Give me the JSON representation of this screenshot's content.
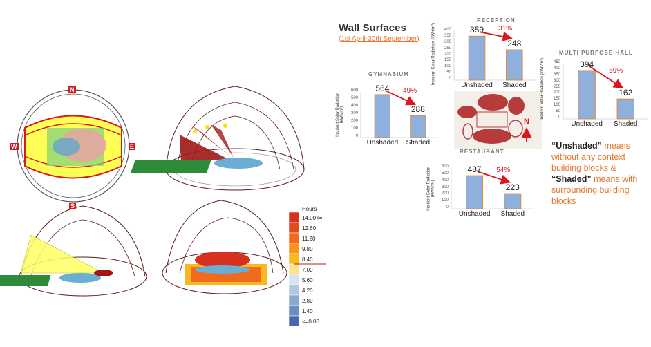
{
  "header": {
    "title": "Wall Surfaces",
    "subtitle": "(1st April-30th September)"
  },
  "compass": {
    "n": "N",
    "s": "S",
    "e": "E",
    "w": "W"
  },
  "north_label": "N",
  "note": {
    "unshaded_term": "“Unshaded”",
    "unshaded_text": " means without any context building blocks & ",
    "shaded_term": "“Shaded”",
    "shaded_text": " means with surrounding building blocks"
  },
  "legend": {
    "title": "Hours",
    "labels": [
      "14.00<=",
      "12.60",
      "11.20",
      "9.80",
      "8.40",
      "7.00",
      "5.60",
      "4.20",
      "2.80",
      "1.40",
      "<=0.00"
    ],
    "colors": [
      "#d7301f",
      "#e34a1e",
      "#ef6b1d",
      "#f7941d",
      "#fbb81d",
      "#fde28a",
      "#d7e3ef",
      "#b0c6e0",
      "#8aa8d2",
      "#6b8cc4",
      "#4a68b0"
    ]
  },
  "chart_data": [
    {
      "type": "bar",
      "title": "GYMNASIUM",
      "categories": [
        "Unshaded",
        "Shaded"
      ],
      "values": [
        564,
        288
      ],
      "ylabel": "Incident Solar Radiation (kWh/m²)",
      "ylim": [
        0,
        600
      ],
      "yticks": [
        "600",
        "500",
        "400",
        "300",
        "200",
        "100",
        "0"
      ],
      "reduction": "49%"
    },
    {
      "type": "bar",
      "title": "RECEPTION",
      "categories": [
        "Unshaded",
        "Shaded"
      ],
      "values": [
        359,
        248
      ],
      "ylabel": "Incident Solar Radiation (kWh/m²)",
      "ylim": [
        0,
        400
      ],
      "yticks": [
        "400",
        "350",
        "300",
        "250",
        "200",
        "150",
        "100",
        "50",
        "0"
      ],
      "reduction": "31%"
    },
    {
      "type": "bar",
      "title": "MULTI PURPOSE HALL",
      "categories": [
        "Unshaded",
        "Shaded"
      ],
      "values": [
        394,
        162
      ],
      "ylabel": "Incident Solar Radiation (kWh/m²)",
      "ylim": [
        0,
        450
      ],
      "yticks": [
        "450",
        "400",
        "350",
        "300",
        "250",
        "200",
        "150",
        "100",
        "50",
        "0"
      ],
      "reduction": "59%"
    },
    {
      "type": "bar",
      "title": "RESTAURANT",
      "categories": [
        "Unshaded",
        "Shaded"
      ],
      "values": [
        487,
        223
      ],
      "ylabel": "Incident Solar Radiation (kWh/m²)",
      "ylim": [
        0,
        600
      ],
      "yticks": [
        "600",
        "500",
        "400",
        "300",
        "200",
        "100",
        "0"
      ],
      "reduction": "54%"
    }
  ]
}
